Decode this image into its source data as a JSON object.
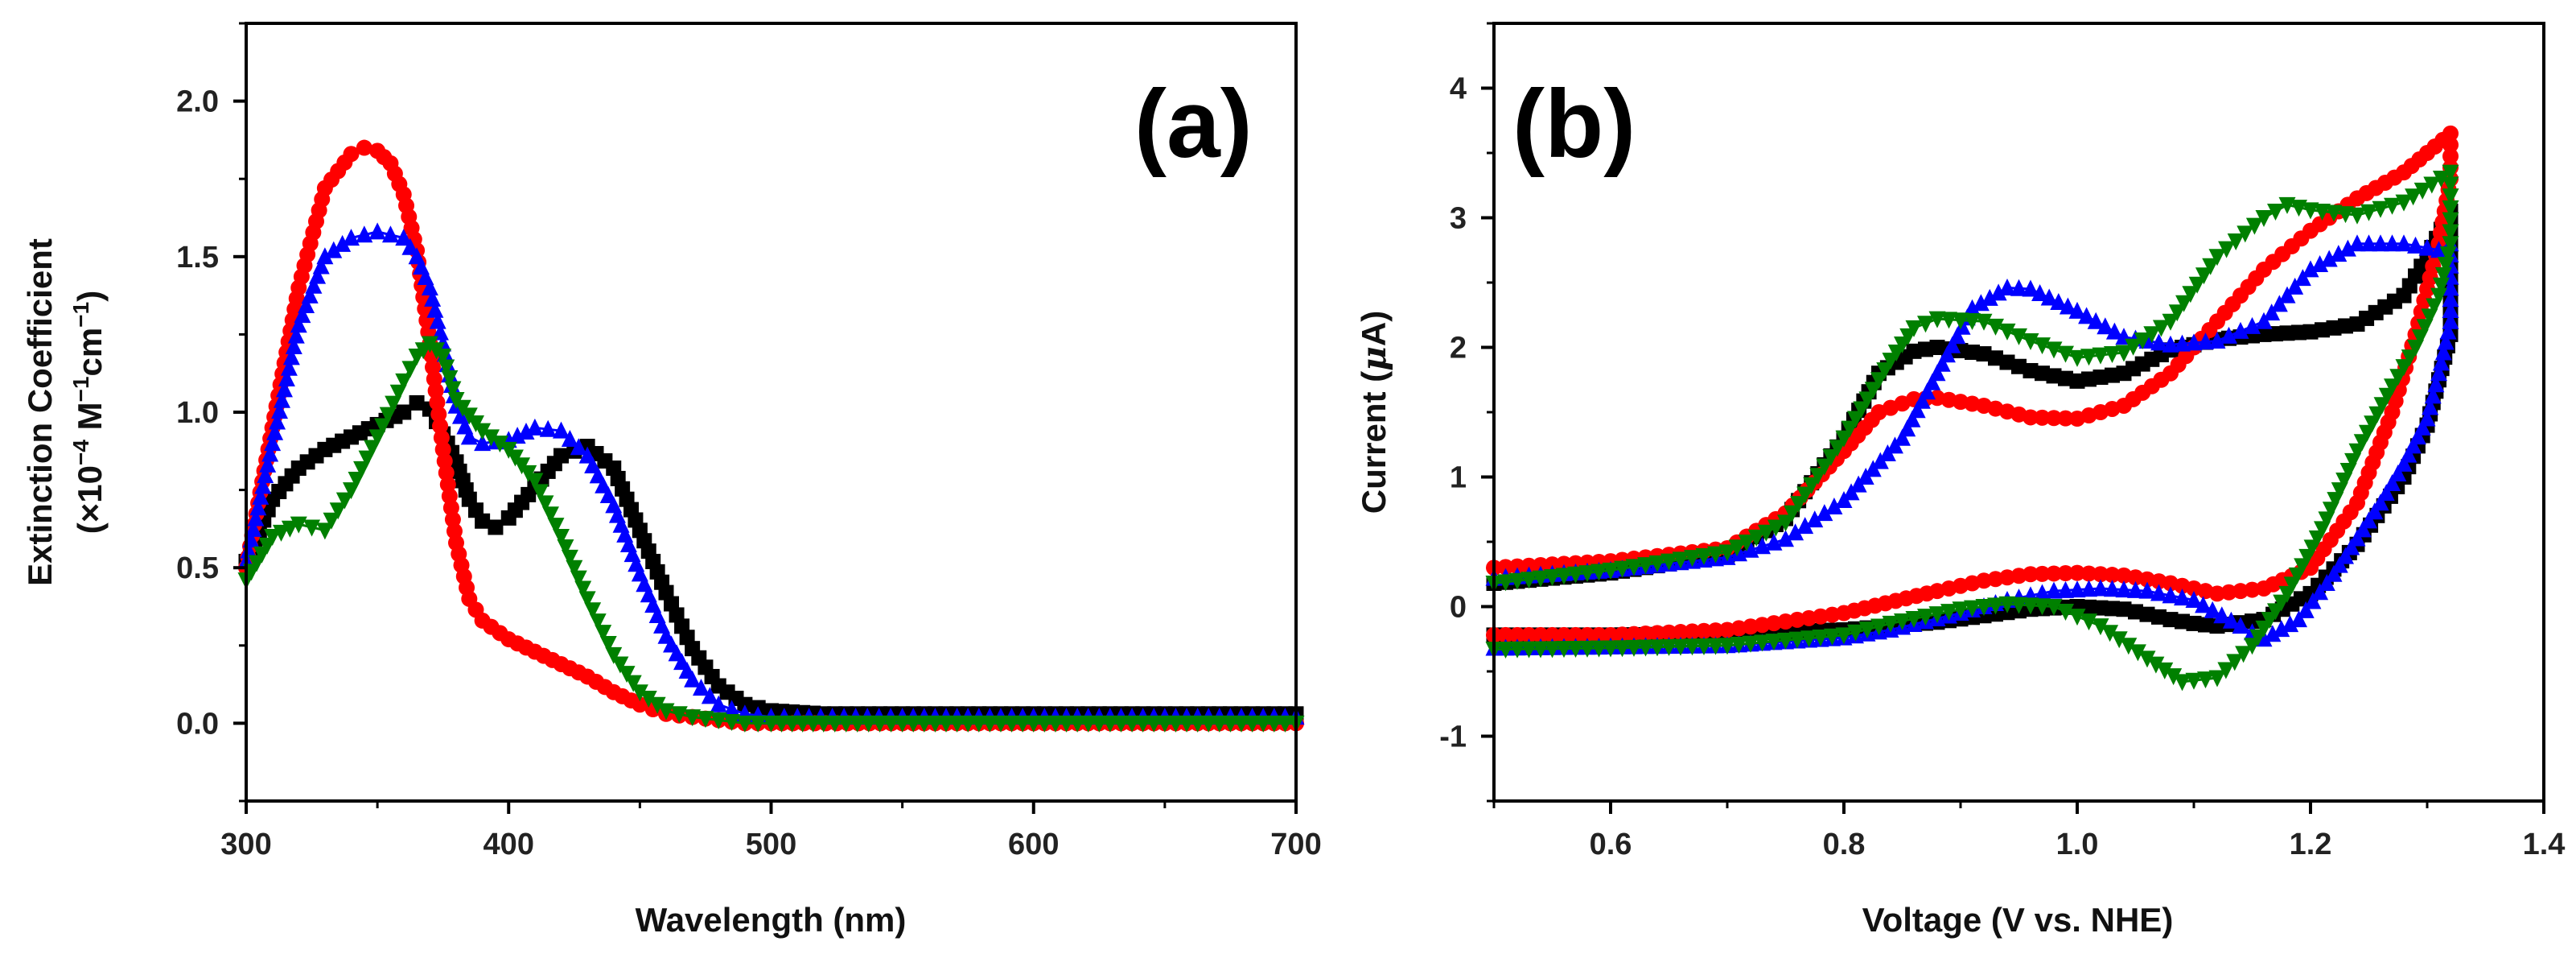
{
  "chart_data": [
    {
      "type": "line",
      "panel_label": "(a)",
      "xlabel": "Wavelength (nm)",
      "ylabel_line1": "Extinction Coefficient",
      "ylabel_line2_parts": [
        "(×10",
        "−4",
        " M",
        "−1",
        "cm",
        "−1",
        ")"
      ],
      "xlim": [
        300,
        700
      ],
      "ylim": [
        -0.25,
        2.25
      ],
      "xticks": [
        300,
        400,
        500,
        600,
        700
      ],
      "xtick_labels": [
        "300",
        "400",
        "500",
        "600",
        "700"
      ],
      "yticks": [
        0.0,
        0.5,
        1.0,
        1.5,
        2.0
      ],
      "ytick_labels": [
        "0.0",
        "0.5",
        "1.0",
        "1.5",
        "2.0"
      ],
      "series": [
        {
          "name": "black",
          "color": "#000000",
          "marker": "square",
          "x": [
            300,
            310,
            320,
            330,
            340,
            350,
            360,
            365,
            370,
            375,
            380,
            385,
            390,
            395,
            400,
            410,
            420,
            430,
            440,
            450,
            460,
            470,
            480,
            490,
            500,
            520,
            550,
            600,
            650,
            700
          ],
          "y": [
            0.52,
            0.72,
            0.82,
            0.88,
            0.92,
            0.96,
            1.0,
            1.03,
            1.01,
            0.93,
            0.84,
            0.72,
            0.65,
            0.63,
            0.66,
            0.76,
            0.86,
            0.89,
            0.82,
            0.62,
            0.42,
            0.24,
            0.12,
            0.06,
            0.04,
            0.03,
            0.03,
            0.03,
            0.03,
            0.03
          ]
        },
        {
          "name": "red",
          "color": "#ff0000",
          "marker": "circle",
          "x": [
            300,
            310,
            320,
            330,
            340,
            345,
            350,
            355,
            360,
            365,
            370,
            375,
            380,
            385,
            390,
            400,
            410,
            420,
            430,
            440,
            450,
            460,
            470,
            480,
            490,
            500,
            550,
            600,
            650,
            700
          ],
          "y": [
            0.5,
            0.95,
            1.4,
            1.72,
            1.83,
            1.85,
            1.84,
            1.8,
            1.7,
            1.52,
            1.22,
            0.88,
            0.58,
            0.4,
            0.33,
            0.27,
            0.23,
            0.19,
            0.15,
            0.1,
            0.06,
            0.03,
            0.02,
            0.01,
            0.0,
            0.0,
            0.0,
            0.0,
            0.0,
            0.0
          ]
        },
        {
          "name": "blue",
          "color": "#0000ff",
          "marker": "triangle-up",
          "x": [
            300,
            310,
            320,
            330,
            340,
            350,
            360,
            365,
            370,
            375,
            380,
            385,
            390,
            400,
            410,
            420,
            430,
            440,
            450,
            460,
            470,
            480,
            490,
            500,
            510,
            550,
            600,
            650,
            700
          ],
          "y": [
            0.52,
            0.9,
            1.28,
            1.5,
            1.56,
            1.58,
            1.56,
            1.5,
            1.4,
            1.22,
            1.02,
            0.92,
            0.9,
            0.91,
            0.95,
            0.94,
            0.86,
            0.7,
            0.48,
            0.28,
            0.14,
            0.06,
            0.03,
            0.02,
            0.02,
            0.02,
            0.02,
            0.02,
            0.02
          ]
        },
        {
          "name": "green",
          "color": "#008000",
          "marker": "triangle-down",
          "x": [
            300,
            310,
            320,
            330,
            340,
            350,
            360,
            365,
            370,
            375,
            380,
            390,
            400,
            410,
            420,
            430,
            440,
            450,
            460,
            470,
            480,
            490,
            500,
            520,
            550,
            600,
            650,
            700
          ],
          "y": [
            0.46,
            0.6,
            0.64,
            0.62,
            0.75,
            0.92,
            1.1,
            1.18,
            1.22,
            1.18,
            1.04,
            0.94,
            0.88,
            0.78,
            0.6,
            0.4,
            0.22,
            0.1,
            0.04,
            0.02,
            0.01,
            0.0,
            0.0,
            0.0,
            0.0,
            0.0,
            0.0,
            0.0
          ]
        }
      ]
    },
    {
      "type": "line",
      "panel_label": "(b)",
      "xlabel": "Voltage (V vs. NHE)",
      "ylabel_parts": [
        "Current (",
        "μ",
        "A)"
      ],
      "xlim": [
        0.5,
        1.4
      ],
      "ylim": [
        -1.5,
        4.5
      ],
      "xticks": [
        0.6,
        0.8,
        1.0,
        1.2,
        1.4
      ],
      "xtick_labels": [
        "0.6",
        "0.8",
        "1.0",
        "1.2",
        "1.4"
      ],
      "yticks": [
        -1,
        0,
        1,
        2,
        3,
        4
      ],
      "ytick_labels": [
        "-1",
        "0",
        "1",
        "2",
        "3",
        "4"
      ],
      "series": [
        {
          "name": "black",
          "color": "#000000",
          "marker": "square",
          "x": [
            0.5,
            0.6,
            0.7,
            0.75,
            0.8,
            0.83,
            0.86,
            0.88,
            0.92,
            0.96,
            1.0,
            1.04,
            1.08,
            1.12,
            1.16,
            1.2,
            1.24,
            1.28,
            1.3,
            1.32,
            1.32,
            1.3,
            1.28,
            1.24,
            1.2,
            1.16,
            1.12,
            1.1,
            1.08,
            1.04,
            1.0,
            0.96,
            0.92,
            0.88,
            0.8,
            0.7,
            0.6,
            0.5
          ],
          "y": [
            0.18,
            0.26,
            0.4,
            0.68,
            1.3,
            1.8,
            1.97,
            2.0,
            1.95,
            1.82,
            1.74,
            1.8,
            1.98,
            2.06,
            2.1,
            2.12,
            2.18,
            2.4,
            2.7,
            3.05,
            2.1,
            1.4,
            1.0,
            0.48,
            0.1,
            -0.1,
            -0.15,
            -0.13,
            -0.1,
            -0.02,
            0.0,
            -0.02,
            -0.07,
            -0.12,
            -0.18,
            -0.21,
            -0.22,
            -0.22
          ]
        },
        {
          "name": "red",
          "color": "#ff0000",
          "marker": "circle",
          "x": [
            0.5,
            0.6,
            0.7,
            0.75,
            0.8,
            0.83,
            0.86,
            0.88,
            0.92,
            0.96,
            1.0,
            1.04,
            1.08,
            1.12,
            1.16,
            1.2,
            1.24,
            1.28,
            1.3,
            1.32,
            1.32,
            1.31,
            1.29,
            1.27,
            1.24,
            1.2,
            1.16,
            1.12,
            1.08,
            1.04,
            1.0,
            0.96,
            0.92,
            0.88,
            0.8,
            0.7,
            0.6,
            0.5
          ],
          "y": [
            0.3,
            0.35,
            0.45,
            0.72,
            1.2,
            1.5,
            1.6,
            1.61,
            1.55,
            1.46,
            1.45,
            1.55,
            1.8,
            2.2,
            2.6,
            2.9,
            3.15,
            3.35,
            3.5,
            3.65,
            3.3,
            2.8,
            2.1,
            1.5,
            0.8,
            0.3,
            0.14,
            0.1,
            0.18,
            0.24,
            0.26,
            0.25,
            0.2,
            0.12,
            -0.05,
            -0.18,
            -0.22,
            -0.22
          ]
        },
        {
          "name": "blue",
          "color": "#0000ff",
          "marker": "triangle-up",
          "x": [
            0.5,
            0.6,
            0.7,
            0.75,
            0.8,
            0.85,
            0.88,
            0.91,
            0.94,
            0.96,
            1.0,
            1.04,
            1.08,
            1.12,
            1.16,
            1.2,
            1.24,
            1.28,
            1.31,
            1.32,
            1.32,
            1.31,
            1.3,
            1.28,
            1.26,
            1.22,
            1.19,
            1.16,
            1.14,
            1.1,
            1.06,
            1.02,
            0.98,
            0.94,
            0.9,
            0.84,
            0.8,
            0.7,
            0.6,
            0.5
          ],
          "y": [
            0.22,
            0.28,
            0.38,
            0.52,
            0.82,
            1.3,
            1.8,
            2.3,
            2.46,
            2.45,
            2.28,
            2.08,
            2.02,
            2.05,
            2.2,
            2.6,
            2.8,
            2.8,
            2.75,
            2.8,
            2.2,
            1.8,
            1.45,
            1.1,
            0.8,
            0.25,
            -0.1,
            -0.25,
            -0.15,
            0.05,
            0.12,
            0.14,
            0.12,
            0.05,
            -0.05,
            -0.18,
            -0.24,
            -0.3,
            -0.31,
            -0.32
          ]
        },
        {
          "name": "green",
          "color": "#008000",
          "marker": "triangle-down",
          "x": [
            0.5,
            0.6,
            0.7,
            0.75,
            0.8,
            0.84,
            0.86,
            0.88,
            0.92,
            0.96,
            1.0,
            1.04,
            1.08,
            1.12,
            1.16,
            1.18,
            1.2,
            1.24,
            1.28,
            1.32,
            1.32,
            1.31,
            1.29,
            1.27,
            1.24,
            1.21,
            1.18,
            1.15,
            1.12,
            1.09,
            1.06,
            1.02,
            0.98,
            0.94,
            0.9,
            0.84,
            0.8,
            0.7,
            0.6,
            0.5
          ],
          "y": [
            0.18,
            0.28,
            0.42,
            0.65,
            1.3,
            1.9,
            2.15,
            2.22,
            2.2,
            2.05,
            1.92,
            1.96,
            2.2,
            2.7,
            3.0,
            3.1,
            3.06,
            3.02,
            3.12,
            3.35,
            2.8,
            2.4,
            2.0,
            1.7,
            1.2,
            0.6,
            0.1,
            -0.3,
            -0.55,
            -0.58,
            -0.4,
            -0.15,
            0.0,
            0.02,
            -0.02,
            -0.13,
            -0.22,
            -0.3,
            -0.32,
            -0.33
          ]
        }
      ]
    }
  ]
}
